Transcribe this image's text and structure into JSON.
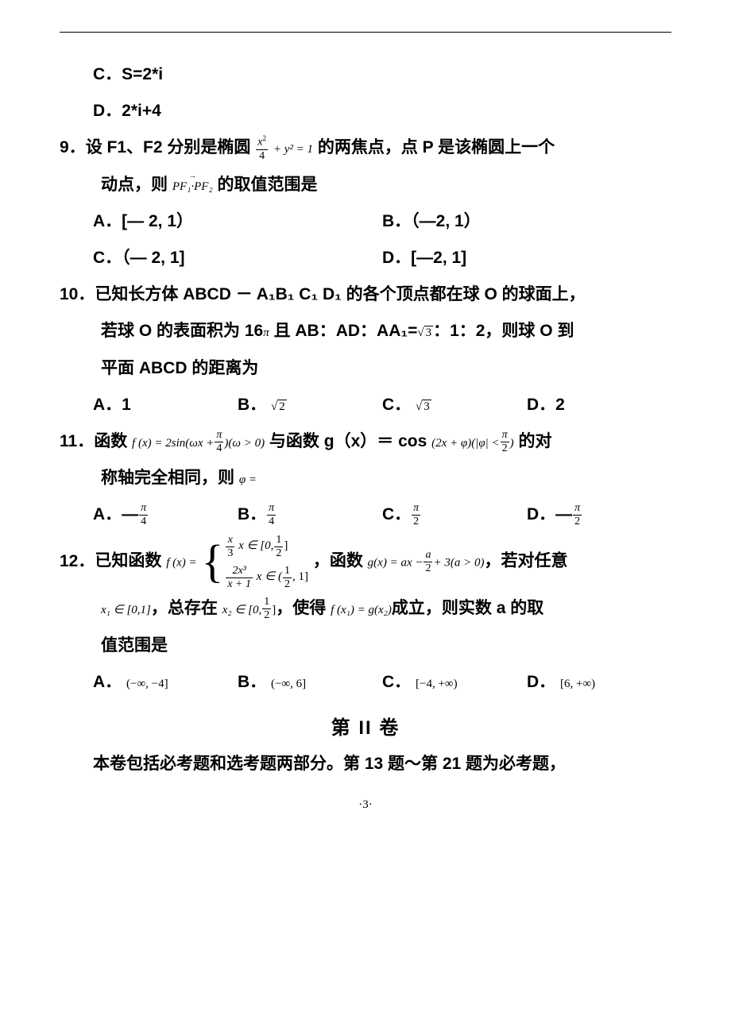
{
  "opt_C8": "C．S=2*i",
  "opt_D8": "D．2*i+4",
  "q9": {
    "num": "9．",
    "pre": "设 F1、F2 分别是椭圆",
    "ellipse_num": "x",
    "ellipse_sup": "2",
    "ellipse_den": "4",
    "ellipse_tail": "+ y² = 1",
    "post": "的两焦点，点 P 是该椭圆上一个",
    "line2a": "动点，则",
    "vec": "PF₁·PF₂",
    "line2b": "的取值范围是",
    "optA": "A．[— 2, 1）",
    "optB": "B．（—2, 1）",
    "optC": "C．（— 2, 1]",
    "optD": "D．[—2, 1]"
  },
  "q10": {
    "num": "10．",
    "l1": "已知长方体 ABCD － A₁B₁ C₁ D₁ 的各个顶点都在球 O 的球面上，",
    "l2a": "若球 O 的表面积为 16",
    "pi": "π",
    "l2b": "且 AB：AD：AA₁=",
    "sqrt3": "3",
    "l2c": "：1：2，则球 O 到",
    "l3": "平面 ABCD 的距离为",
    "optA": "A．1",
    "optB": "B．",
    "optB_rad": "2",
    "optC": "C．",
    "optC_rad": "3",
    "optD": "D．2"
  },
  "q11": {
    "num": "11．",
    "pre": "函数",
    "f": "f (x) = 2sin(ωx +",
    "frac_pi4_n": "π",
    "frac_pi4_d": "4",
    "fpost": ")(ω > 0)",
    "mid": "与函数 g（x）＝ cos",
    "g": "(2x + φ)(|φ| <",
    "frac_pi2_n": "π",
    "frac_pi2_d": "2",
    "gpost": ")",
    "tail": "的对",
    "l2": "称轴完全相同，则",
    "phi_eq": "φ =",
    "optA": "A．—",
    "optB": "B．",
    "optC": "C．",
    "optD": "D．—",
    "fA_n": "π",
    "fA_d": "4",
    "fB_n": "π",
    "fB_d": "4",
    "fC_n": "π",
    "fC_d": "2",
    "fD_n": "π",
    "fD_d": "2"
  },
  "q12": {
    "num": "12．",
    "pre": "已知函数",
    "flabel": "f (x) =",
    "case1_f_n": "x",
    "case1_f_d": "3",
    "case1_dom": "x ∈ [0,",
    "case1_half_n": "1",
    "case1_half_d": "2",
    "case1_close": "]",
    "case2_f_n": "2x³",
    "case2_f_d": "x + 1",
    "case2_dom": "x ∈ (",
    "case2_half_n": "1",
    "case2_half_d": "2",
    "case2_close": ", 1]",
    "mid": "，函数",
    "g": "g(x) = ax −",
    "g_frac_n": "a",
    "g_frac_d": "2",
    "g_post": "+ 3(a > 0)",
    "tail": "，若对任意",
    "l2_x1": "x₁ ∈ [0,1]",
    "l2_a": "，总存在",
    "l2_x2": "x₂ ∈ [0,",
    "l2_half_n": "1",
    "l2_half_d": "2",
    "l2_x2b": "]",
    "l2_b": "，使得",
    "l2_eq": "f (x₁) = g(x₂)",
    "l2_c": "成立，则实数 a 的取",
    "l3": "值范围是",
    "optA": "A．",
    "optA_m": "(−∞, −4]",
    "optB": "B．",
    "optB_m": "(−∞, 6]",
    "optC": "C．",
    "optC_m": "[−4, +∞)",
    "optD": "D．",
    "optD_m": "[6, +∞)"
  },
  "section2": "第 II 卷",
  "footer_text": "本卷包括必考题和选考题两部分。第 13 题～第 21 题为必考题，",
  "pagenum": "·3·"
}
